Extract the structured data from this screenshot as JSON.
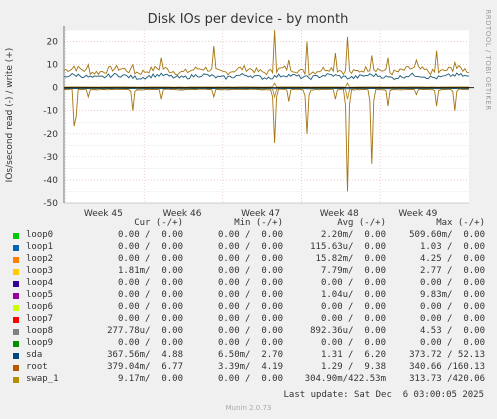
{
  "chart_data": {
    "type": "line",
    "title": "Disk IOs per device - by month",
    "ylabel": "IOs/second read (-) / write (+)",
    "side_label": "RRDTOOL / TOBI OETIKER",
    "ylim": [
      -50,
      25
    ],
    "yticks": [
      20,
      10,
      0,
      -10,
      -20,
      -30,
      -40,
      -50
    ],
    "x_tick_labels": [
      "Week 45",
      "Week 46",
      "Week 47",
      "Week 48",
      "Week 49"
    ],
    "grid": true,
    "series": [
      {
        "name": "root",
        "color": "#a6740f",
        "write_baseline": 7.5,
        "read_baseline": -0.8,
        "spikes": [
          {
            "pos": 0.027,
            "write": 14,
            "read": -25
          },
          {
            "pos": 0.06,
            "write": 10,
            "read": -4
          },
          {
            "pos": 0.17,
            "write": 10,
            "read": -10
          },
          {
            "pos": 0.24,
            "write": 13,
            "read": -5
          },
          {
            "pos": 0.37,
            "write": 18,
            "read": -4
          },
          {
            "pos": 0.52,
            "write": 25,
            "read": -24
          },
          {
            "pos": 0.555,
            "write": 12,
            "read": -6
          },
          {
            "pos": 0.6,
            "write": 20,
            "read": -20
          },
          {
            "pos": 0.67,
            "write": 15,
            "read": -5
          },
          {
            "pos": 0.7,
            "write": 22,
            "read": -45
          },
          {
            "pos": 0.76,
            "write": 14,
            "read": -33
          },
          {
            "pos": 0.8,
            "write": 13,
            "read": -8
          },
          {
            "pos": 0.87,
            "write": 12,
            "read": -3
          },
          {
            "pos": 0.92,
            "write": 16,
            "read": -8
          },
          {
            "pos": 0.965,
            "write": 11,
            "read": -10
          }
        ]
      },
      {
        "name": "swap_1",
        "color": "#b88a22",
        "write_baseline": 0.3,
        "read_baseline": -0.3,
        "spikes": [
          {
            "pos": 0.52,
            "write": 2,
            "read": -4
          },
          {
            "pos": 0.7,
            "write": 2,
            "read": -5
          }
        ]
      },
      {
        "name": "sda",
        "color": "#1a5a7a",
        "write_baseline": 4.9,
        "read_baseline": -0.4,
        "spikes": []
      },
      {
        "name": "loop0",
        "color": "#00cc00",
        "write_baseline": 0,
        "read_baseline": 0,
        "spikes": []
      },
      {
        "name": "loop1",
        "color": "#0066b3",
        "write_baseline": 0,
        "read_baseline": 0,
        "spikes": []
      },
      {
        "name": "loop2",
        "color": "#ff8000",
        "write_baseline": 0,
        "read_baseline": 0,
        "spikes": []
      }
    ]
  },
  "legend": {
    "headers": {
      "cur": "Cur (-/+)",
      "min": "Min (-/+)",
      "avg": "Avg (-/+)",
      "max": "Max (-/+)"
    },
    "rows": [
      {
        "name": "loop0",
        "color": "#00cc00",
        "cur": "0.00 /  0.00",
        "min": "0.00 /  0.00",
        "avg": "2.20m/  0.00",
        "max": "509.60m/  0.00"
      },
      {
        "name": "loop1",
        "color": "#0066b3",
        "cur": "0.00 /  0.00",
        "min": "0.00 /  0.00",
        "avg": "115.63u/  0.00",
        "max": "1.03 /  0.00"
      },
      {
        "name": "loop2",
        "color": "#ff8000",
        "cur": "0.00 /  0.00",
        "min": "0.00 /  0.00",
        "avg": "15.82m/  0.00",
        "max": "4.25 /  0.00"
      },
      {
        "name": "loop3",
        "color": "#ffcc00",
        "cur": "1.81m/  0.00",
        "min": "0.00 /  0.00",
        "avg": "7.79m/  0.00",
        "max": "2.77 /  0.00"
      },
      {
        "name": "loop4",
        "color": "#330099",
        "cur": "0.00 /  0.00",
        "min": "0.00 /  0.00",
        "avg": "0.00 /  0.00",
        "max": "0.00 /  0.00"
      },
      {
        "name": "loop5",
        "color": "#990099",
        "cur": "0.00 /  0.00",
        "min": "0.00 /  0.00",
        "avg": "1.04u/  0.00",
        "max": "9.83m/  0.00"
      },
      {
        "name": "loop6",
        "color": "#ccff00",
        "cur": "0.00 /  0.00",
        "min": "0.00 /  0.00",
        "avg": "0.00 /  0.00",
        "max": "0.00 /  0.00"
      },
      {
        "name": "loop7",
        "color": "#ff0000",
        "cur": "0.00 /  0.00",
        "min": "0.00 /  0.00",
        "avg": "0.00 /  0.00",
        "max": "0.00 /  0.00"
      },
      {
        "name": "loop8",
        "color": "#808080",
        "cur": "277.78u/  0.00",
        "min": "0.00 /  0.00",
        "avg": "892.36u/  0.00",
        "max": "4.53 /  0.00"
      },
      {
        "name": "loop9",
        "color": "#008f00",
        "cur": "0.00 /  0.00",
        "min": "0.00 /  0.00",
        "avg": "0.00 /  0.00",
        "max": "0.00 /  0.00"
      },
      {
        "name": "sda",
        "color": "#00487d",
        "cur": "367.56m/  4.88",
        "min": "6.50m/  2.70",
        "avg": "1.31 /  6.20",
        "max": "373.72 / 52.13"
      },
      {
        "name": "root",
        "color": "#b35a00",
        "cur": "379.04m/  6.77",
        "min": "3.39m/  4.19",
        "avg": "1.29 /  9.38",
        "max": "340.66 /160.13"
      },
      {
        "name": "swap_1",
        "color": "#b38f00",
        "cur": "9.17m/  0.00",
        "min": "0.00 /  0.00",
        "avg": "304.90m/422.53m",
        "max": "313.73 /420.06"
      }
    ]
  },
  "footer": {
    "last_update": "Last update: Sat Dec  6 03:00:05 2025",
    "version": "Munin 2.0.73"
  }
}
